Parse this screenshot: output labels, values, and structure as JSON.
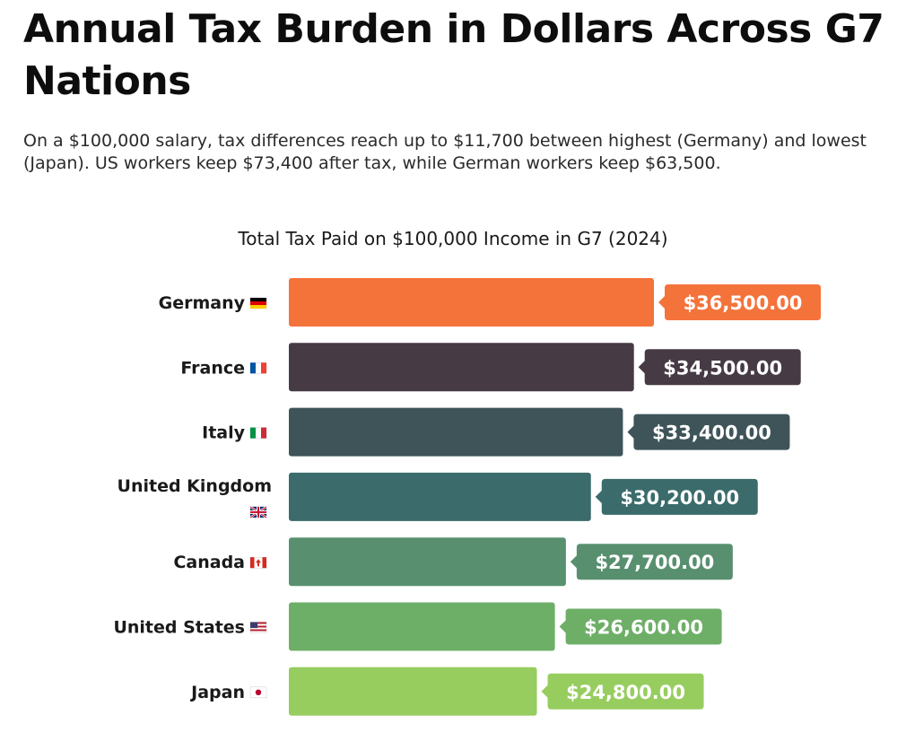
{
  "header": {
    "title": "Annual Tax Burden in Dollars Across G7 Nations",
    "subtitle": "On a $100,000 salary, tax differences reach up to $11,700 between highest (Germany) and lowest (Japan). US workers keep $73,400 after tax, while German workers keep $63,500."
  },
  "chart_data": {
    "type": "bar",
    "orientation": "horizontal",
    "title": "Total Tax Paid on $100,000 Income in G7 (2024)",
    "xlabel": "",
    "ylabel": "",
    "grid": false,
    "legend": "none",
    "categories": [
      "Germany",
      "France",
      "Italy",
      "United Kingdom",
      "Canada",
      "United States",
      "Japan"
    ],
    "category_flags": [
      "germany-flag-icon",
      "france-flag-icon",
      "italy-flag-icon",
      "uk-flag-icon",
      "canada-flag-icon",
      "us-flag-icon",
      "japan-flag-icon"
    ],
    "values": [
      36500,
      34500,
      33400,
      30200,
      27700,
      26600,
      24800
    ],
    "value_labels": [
      "$36,500.00",
      "$34,500.00",
      "$33,400.00",
      "$30,200.00",
      "$27,700.00",
      "$26,600.00",
      "$24,800.00"
    ],
    "colors": [
      "#f4733b",
      "#463a44",
      "#3e5458",
      "#3b6b6b",
      "#58906f",
      "#6eaf68",
      "#97cd5f"
    ]
  }
}
